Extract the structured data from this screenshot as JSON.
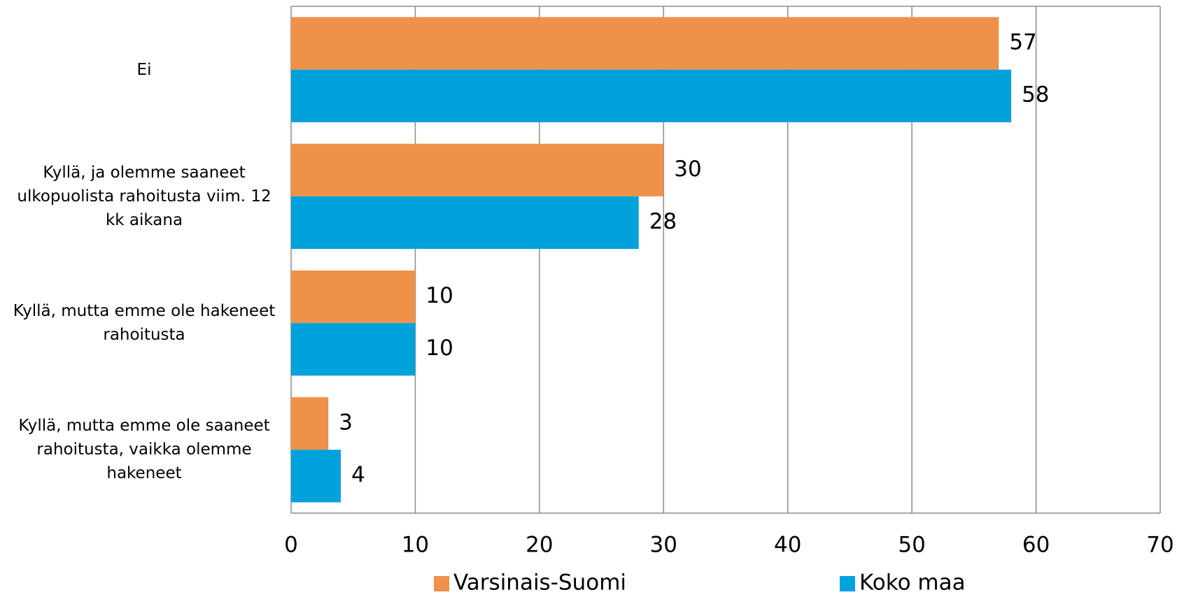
{
  "chart_data": {
    "type": "bar",
    "orientation": "horizontal",
    "categories": [
      "Ei",
      "Kyllä, ja olemme saaneet ulkopuolista rahoitusta viim. 12 kk aikana",
      "Kyllä, mutta emme ole hakeneet rahoitusta",
      "Kyllä, mutta emme ole saaneet rahoitusta, vaikka olemme hakeneet"
    ],
    "series": [
      {
        "name": "Varsinais-Suomi",
        "color": "#f0914a",
        "values": [
          57,
          30,
          10,
          3
        ]
      },
      {
        "name": "Koko maa",
        "color": "#00a2db",
        "values": [
          58,
          28,
          10,
          4
        ]
      }
    ],
    "xlim": [
      0,
      70
    ],
    "xticks": [
      0,
      10,
      20,
      30,
      40,
      50,
      60,
      70
    ],
    "grid": true,
    "legend": "bottom"
  }
}
